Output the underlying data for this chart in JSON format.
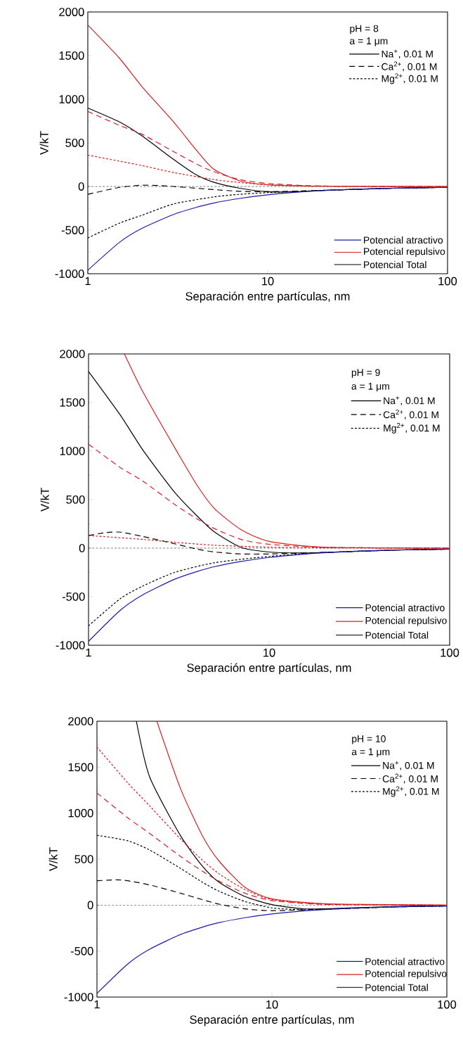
{
  "chart_data": [
    {
      "type": "line",
      "xlabel": "Separación entre partículas, nm",
      "ylabel": "V/kT",
      "log": "x",
      "xlim": [
        1,
        100
      ],
      "ylim": [
        -1000,
        2000
      ],
      "xticks": [
        1,
        10,
        100
      ],
      "yticks": [
        -1000,
        -500,
        0,
        500,
        1000,
        1500,
        2000
      ],
      "grid": false,
      "legend": "bottom right",
      "annotations": [
        "pH = 8",
        "a = 1 μm",
        "Potencial Total"
      ],
      "ref_lines": [
        {
          "axis": "y",
          "value": 0,
          "color": "#000000",
          "line_style": "dotted"
        }
      ],
      "series": [
        {
          "name": "Na$^{+}$, 0.01 M",
          "color": "#000000",
          "line_style": "solid",
          "x": [
            1,
            1.5,
            2,
            3,
            4,
            5,
            7,
            10,
            15,
            20,
            50,
            100
          ],
          "values": [
            900,
            740,
            580,
            310,
            135,
            50,
            -20,
            -60,
            -60,
            -45,
            -20,
            -10
          ]
        },
        {
          "name": "Ca$^{2+}$, 0.01 M",
          "color": "#000000",
          "line_style": "dashed",
          "x": [
            1,
            1.5,
            2,
            2.5,
            3,
            4,
            5,
            7,
            10,
            20,
            50,
            100
          ],
          "values": [
            -90,
            -10,
            15,
            10,
            0,
            -20,
            -35,
            -55,
            -60,
            -45,
            -20,
            -10
          ]
        },
        {
          "name": "Mg$^{2+}$, 0.01 M",
          "color": "#000000",
          "line_style": "dotted",
          "x": [
            1,
            1.5,
            2,
            3,
            5,
            7,
            10,
            20,
            50,
            100
          ],
          "values": [
            -590,
            -420,
            -330,
            -200,
            -120,
            -90,
            -70,
            -45,
            -20,
            -10
          ]
        },
        {
          "name": "Potencial atractivo",
          "color": "#1a1aaa",
          "line_style": "solid",
          "x": [
            1,
            1.5,
            2,
            3,
            4,
            5,
            7,
            10,
            15,
            20,
            30,
            50,
            100
          ],
          "values": [
            -960,
            -640,
            -480,
            -320,
            -240,
            -190,
            -137,
            -96,
            -64,
            -48,
            -32,
            -19,
            -10
          ]
        },
        {
          "name": "Potencial repulsivo",
          "color": "#d42020",
          "line_style": "solid",
          "x": [
            1,
            1.5,
            2,
            3,
            4,
            5,
            7,
            10,
            20,
            100
          ],
          "values": [
            1850,
            1470,
            1145,
            740,
            420,
            200,
            65,
            20,
            3,
            0
          ]
        },
        {
          "color": "#d42020",
          "line_style": "dashed",
          "x": [
            1,
            1.5,
            2,
            3,
            4,
            5,
            7,
            10,
            20,
            100
          ],
          "values": [
            860,
            700,
            600,
            400,
            260,
            170,
            80,
            35,
            5,
            0
          ]
        },
        {
          "color": "#d42020",
          "line_style": "dotted",
          "x": [
            1,
            1.5,
            2,
            3,
            5,
            7,
            10,
            20,
            100
          ],
          "values": [
            360,
            290,
            240,
            160,
            80,
            45,
            20,
            5,
            0
          ]
        }
      ]
    },
    {
      "type": "line",
      "xlabel": "Separación entre partículas, nm",
      "ylabel": "V/kT",
      "log": "x",
      "xlim": [
        1,
        100
      ],
      "ylim": [
        -1000,
        2000
      ],
      "xticks": [
        1,
        10,
        100
      ],
      "yticks": [
        -1000,
        -500,
        0,
        500,
        1000,
        1500,
        2000
      ],
      "grid": false,
      "legend": "bottom right",
      "annotations": [
        "pH = 9",
        "a = 1 μm",
        "Potencial Total"
      ],
      "ref_lines": [
        {
          "axis": "y",
          "value": 0,
          "color": "#000000",
          "line_style": "dotted"
        }
      ],
      "series": [
        {
          "name": "Na$^{+}$, 0.01 M",
          "color": "#000000",
          "line_style": "solid",
          "x": [
            1,
            1.5,
            2,
            3,
            4,
            5,
            7,
            10,
            15,
            20,
            50,
            100
          ],
          "values": [
            1820,
            1370,
            1010,
            575,
            330,
            165,
            7,
            -40,
            -50,
            -45,
            -20,
            -10
          ]
        },
        {
          "name": "Ca$^{2+}$, 0.01 M",
          "color": "#000000",
          "line_style": "dashed",
          "x": [
            1,
            1.25,
            1.5,
            2,
            3,
            4,
            5,
            7,
            10,
            20,
            50,
            100
          ],
          "values": [
            130,
            160,
            165,
            120,
            45,
            -10,
            -40,
            -60,
            -60,
            -45,
            -20,
            -10
          ]
        },
        {
          "name": "Mg$^{2+}$, 0.01 M",
          "color": "#000000",
          "line_style": "dotted",
          "x": [
            1,
            1.5,
            2,
            3,
            5,
            10,
            20,
            50,
            100
          ],
          "values": [
            -800,
            -520,
            -390,
            -250,
            -150,
            -85,
            -45,
            -20,
            -10
          ]
        },
        {
          "name": "Potencial atractivo",
          "color": "#1a1aaa",
          "line_style": "solid",
          "x": [
            1,
            1.5,
            2,
            3,
            4,
            5,
            7,
            10,
            15,
            20,
            30,
            50,
            100
          ],
          "values": [
            -960,
            -640,
            -480,
            -320,
            -240,
            -190,
            -137,
            -96,
            -64,
            -48,
            -32,
            -19,
            -10
          ]
        },
        {
          "name": "Potencial repulsivo",
          "color": "#d42020",
          "line_style": "solid",
          "x": [
            1.58,
            2,
            3,
            4,
            5,
            7,
            10,
            20,
            100
          ],
          "values": [
            2000,
            1610,
            1035,
            645,
            405,
            190,
            70,
            10,
            0
          ]
        },
        {
          "color": "#d42020",
          "line_style": "dashed",
          "x": [
            1,
            1.5,
            2,
            3,
            4,
            5,
            7,
            10,
            20,
            100
          ],
          "values": [
            1070,
            830,
            690,
            450,
            300,
            200,
            90,
            40,
            8,
            0
          ]
        },
        {
          "color": "#d42020",
          "line_style": "dotted",
          "x": [
            1,
            2,
            3,
            5,
            10,
            20,
            100
          ],
          "values": [
            130,
            90,
            60,
            30,
            10,
            3,
            0
          ]
        }
      ]
    },
    {
      "type": "line",
      "xlabel": "Separación entre partículas, nm",
      "ylabel": "V/kT",
      "log": "x",
      "xlim": [
        1,
        100
      ],
      "ylim": [
        -1000,
        2000
      ],
      "xticks": [
        1,
        10,
        100
      ],
      "yticks": [
        -1000,
        -500,
        0,
        500,
        1000,
        1500,
        2000
      ],
      "grid": false,
      "legend": "bottom right",
      "annotations": [
        "pH = 10",
        "a = 1 μm",
        "Potencial Total"
      ],
      "ref_lines": [
        {
          "axis": "y",
          "value": 0,
          "color": "#000000",
          "line_style": "dotted"
        }
      ],
      "series": [
        {
          "name": "Na$^{+}$, 0.01 M",
          "color": "#000000",
          "line_style": "solid",
          "x": [
            1.68,
            2,
            3,
            4,
            5,
            7,
            10,
            15,
            20,
            50,
            100
          ],
          "values": [
            2000,
            1395,
            757,
            426,
            247,
            94,
            5,
            -40,
            -40,
            -15,
            -5
          ]
        },
        {
          "name": "Ca$^{2+}$, 0.01 M",
          "color": "#000000",
          "line_style": "dashed",
          "x": [
            1,
            1.3,
            1.5,
            2,
            3,
            4,
            5,
            7,
            10,
            20,
            50,
            100
          ],
          "values": [
            265,
            275,
            265,
            220,
            130,
            60,
            10,
            -40,
            -60,
            -45,
            -20,
            -10
          ]
        },
        {
          "name": "Mg$^{2+}$, 0.01 M",
          "color": "#000000",
          "line_style": "dotted",
          "x": [
            1,
            1.5,
            2,
            3,
            4,
            5,
            7,
            10,
            15,
            20,
            50,
            100
          ],
          "values": [
            760,
            700,
            600,
            400,
            250,
            150,
            40,
            -30,
            -50,
            -45,
            -20,
            -10
          ]
        },
        {
          "name": "Potencial atractivo",
          "color": "#1a1aaa",
          "line_style": "solid",
          "x": [
            1,
            1.5,
            2,
            3,
            4,
            5,
            7,
            10,
            15,
            20,
            30,
            50,
            100
          ],
          "values": [
            -960,
            -640,
            -480,
            -320,
            -240,
            -190,
            -137,
            -96,
            -64,
            -48,
            -32,
            -19,
            -10
          ]
        },
        {
          "name": "Potencial repulsivo",
          "color": "#d42020",
          "line_style": "solid",
          "x": [
            2.2,
            3,
            4,
            5,
            7,
            10,
            20,
            100
          ],
          "values": [
            2000,
            1270,
            757,
            477,
            196,
            69,
            15,
            0
          ]
        },
        {
          "color": "#d42020",
          "line_style": "dashed",
          "x": [
            1,
            1.5,
            2,
            3,
            4,
            5,
            7,
            10,
            20,
            100
          ],
          "values": [
            1220,
            950,
            780,
            530,
            370,
            260,
            130,
            50,
            8,
            0
          ]
        },
        {
          "color": "#d42020",
          "line_style": "dotted",
          "x": [
            1,
            1.5,
            2,
            3,
            4,
            5,
            7,
            10,
            20,
            100
          ],
          "values": [
            1720,
            1330,
            1080,
            720,
            490,
            340,
            170,
            60,
            10,
            0
          ]
        }
      ]
    }
  ]
}
